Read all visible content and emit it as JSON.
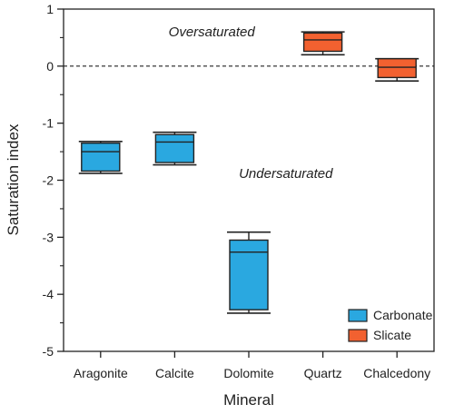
{
  "chart_data": {
    "type": "box",
    "title": "",
    "xlabel": "Mineral",
    "ylabel": "Saturation index",
    "ylim": [
      -5,
      1
    ],
    "yticks": [
      -5,
      -4,
      -3,
      -2,
      -1,
      0,
      1
    ],
    "ytick_labels": [
      "-5",
      "-4",
      "-3",
      "-2",
      "-1",
      "0",
      "1"
    ],
    "grid": false,
    "reference_line": {
      "y": 0,
      "style": "dashed"
    },
    "categories": [
      "Aragonite",
      "Calcite",
      "Dolomite",
      "Quartz",
      "Chalcedony"
    ],
    "boxes": [
      {
        "category": "Aragonite",
        "group": "Carbonate",
        "min": -1.88,
        "q1": -1.84,
        "median": -1.5,
        "q3": -1.35,
        "max": -1.32
      },
      {
        "category": "Calcite",
        "group": "Carbonate",
        "min": -1.73,
        "q1": -1.69,
        "median": -1.33,
        "q3": -1.2,
        "max": -1.16
      },
      {
        "category": "Dolomite",
        "group": "Carbonate",
        "min": -4.33,
        "q1": -4.27,
        "median": -3.26,
        "q3": -3.05,
        "max": -2.91
      },
      {
        "category": "Quartz",
        "group": "Slicate",
        "min": 0.2,
        "q1": 0.26,
        "median": 0.46,
        "q3": 0.58,
        "max": 0.6
      },
      {
        "category": "Chalcedony",
        "group": "Slicate",
        "min": -0.26,
        "q1": -0.2,
        "median": -0.02,
        "q3": 0.13,
        "max": 0.13
      }
    ],
    "annotations": [
      {
        "text": "Oversaturated",
        "x_between": [
          1,
          2
        ],
        "y": 0.6
      },
      {
        "text": "Undersaturated",
        "x_between": [
          2,
          3
        ],
        "y": -1.88
      }
    ],
    "legend": {
      "placement": "bottom-right",
      "entries": [
        {
          "label": "Carbonate",
          "color": "#2aa8e0"
        },
        {
          "label": "Slicate",
          "color": "#f26130"
        }
      ]
    },
    "colors": {
      "Carbonate": "#2aa8e0",
      "Slicate": "#f26130",
      "stroke": "#222222"
    }
  }
}
